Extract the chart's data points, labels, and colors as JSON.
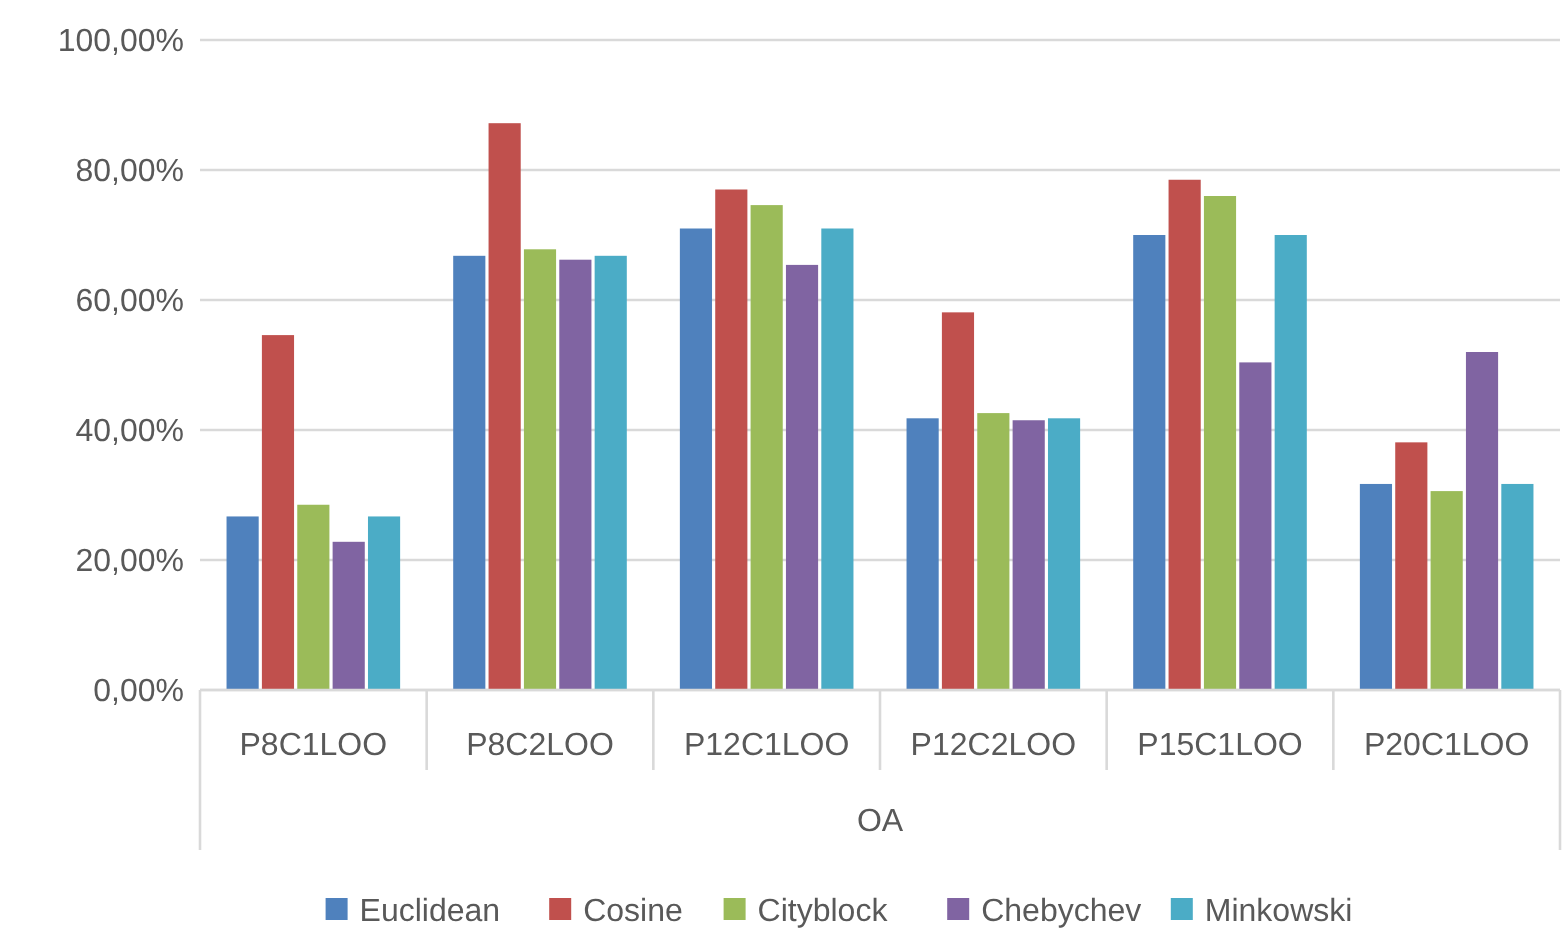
{
  "chart_data": {
    "type": "bar",
    "xlabel": "OA",
    "categories": [
      "P8C1LOO",
      "P8C2LOO",
      "P12C1LOO",
      "P12C2LOO",
      "P15C1LOO",
      "P20C1LOO"
    ],
    "series": [
      {
        "name": "Euclidean",
        "color": "#4f81bd",
        "values": [
          26.7,
          66.8,
          71.0,
          41.8,
          70.0,
          31.7
        ]
      },
      {
        "name": "Cosine",
        "color": "#c0504d",
        "values": [
          54.6,
          87.2,
          77.0,
          58.1,
          78.5,
          38.1
        ]
      },
      {
        "name": "Cityblock",
        "color": "#9bbb59",
        "values": [
          28.5,
          67.8,
          74.6,
          42.6,
          76.0,
          30.6
        ]
      },
      {
        "name": "Chebychev",
        "color": "#8064a2",
        "values": [
          22.8,
          66.2,
          65.4,
          41.5,
          50.4,
          52.0
        ]
      },
      {
        "name": "Minkowski",
        "color": "#4bacc6",
        "values": [
          26.7,
          66.8,
          71.0,
          41.8,
          70.0,
          31.7
        ]
      }
    ],
    "ylim": [
      0,
      100
    ],
    "yticks": [
      {
        "value": 0,
        "label": "0,00%"
      },
      {
        "value": 20,
        "label": "20,00%"
      },
      {
        "value": 40,
        "label": "40,00%"
      },
      {
        "value": 60,
        "label": "60,00%"
      },
      {
        "value": 80,
        "label": "80,00%"
      },
      {
        "value": 100,
        "label": "100,00%"
      }
    ],
    "grid": "y",
    "legend": "bottom"
  }
}
